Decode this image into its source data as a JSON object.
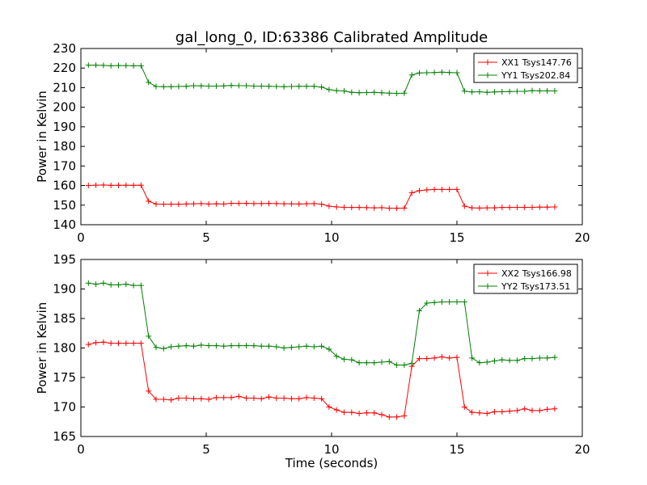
{
  "chart_data": [
    {
      "type": "line",
      "title": "gal_long_0, ID:63386 Calibrated Amplitude",
      "xlabel": "",
      "ylabel": "Power in Kelvin",
      "xlim": [
        0,
        20
      ],
      "ylim": [
        140,
        230
      ],
      "xticks": [
        "0",
        "5",
        "10",
        "15",
        "20"
      ],
      "yticks": [
        "140",
        "150",
        "160",
        "170",
        "180",
        "190",
        "200",
        "210",
        "220",
        "230"
      ],
      "legend_position": "top-right",
      "marker": "plus",
      "x": [
        0.3,
        0.6,
        0.9,
        1.2,
        1.5,
        1.8,
        2.1,
        2.4,
        2.7,
        3.0,
        3.3,
        3.6,
        3.9,
        4.2,
        4.5,
        4.8,
        5.1,
        5.4,
        5.7,
        6.0,
        6.3,
        6.6,
        6.9,
        7.2,
        7.5,
        7.8,
        8.1,
        8.4,
        8.7,
        9.0,
        9.3,
        9.6,
        9.9,
        10.2,
        10.5,
        10.8,
        11.1,
        11.4,
        11.7,
        12.0,
        12.3,
        12.6,
        12.9,
        13.2,
        13.5,
        13.8,
        14.1,
        14.4,
        14.7,
        15.0,
        15.3,
        15.6,
        15.9,
        16.2,
        16.5,
        16.8,
        17.1,
        17.4,
        17.7,
        18.0,
        18.3,
        18.6,
        18.9
      ],
      "series": [
        {
          "name": "XX1 Tsys147.76",
          "color": "#ff0000",
          "values": [
            160.0,
            160.2,
            160.3,
            160.1,
            160.1,
            160.2,
            160.1,
            160.2,
            152.0,
            150.6,
            150.5,
            150.5,
            150.5,
            150.6,
            150.7,
            150.8,
            150.6,
            150.7,
            150.6,
            150.9,
            150.9,
            150.9,
            150.8,
            150.8,
            150.9,
            150.8,
            150.7,
            150.7,
            150.6,
            150.7,
            150.8,
            150.5,
            149.5,
            149.1,
            148.9,
            148.8,
            148.8,
            148.7,
            148.6,
            148.7,
            148.4,
            148.4,
            148.5,
            156.3,
            157.4,
            157.8,
            158.0,
            158.0,
            158.0,
            158.0,
            149.5,
            148.6,
            148.5,
            148.6,
            148.6,
            148.8,
            148.8,
            148.9,
            148.9,
            148.9,
            149.0,
            149.0,
            149.1
          ]
        },
        {
          "name": "YY1 Tsys202.84",
          "color": "#008000",
          "values": [
            221.5,
            221.5,
            221.4,
            221.2,
            221.3,
            221.3,
            221.2,
            221.2,
            212.7,
            210.6,
            210.5,
            210.5,
            210.6,
            210.7,
            211.0,
            210.9,
            210.8,
            210.8,
            210.9,
            211.1,
            211.0,
            211.0,
            210.8,
            210.8,
            210.7,
            210.6,
            210.5,
            210.6,
            210.7,
            210.7,
            210.7,
            210.3,
            209.0,
            208.5,
            208.3,
            207.6,
            207.4,
            207.5,
            207.6,
            207.4,
            207.2,
            207.1,
            207.2,
            216.5,
            217.5,
            217.6,
            217.7,
            217.9,
            217.7,
            217.6,
            208.2,
            207.8,
            207.9,
            207.6,
            207.8,
            207.9,
            208.0,
            208.1,
            208.1,
            208.5,
            208.4,
            208.4,
            208.3
          ]
        }
      ]
    },
    {
      "type": "line",
      "title": "",
      "xlabel": "Time (seconds)",
      "ylabel": "Power in Kelvin",
      "xlim": [
        0,
        20
      ],
      "ylim": [
        165,
        195
      ],
      "xticks": [
        "0",
        "5",
        "10",
        "15",
        "20"
      ],
      "yticks": [
        "165",
        "170",
        "175",
        "180",
        "185",
        "190",
        "195"
      ],
      "legend_position": "top-right",
      "marker": "plus",
      "x": [
        0.3,
        0.6,
        0.9,
        1.2,
        1.5,
        1.8,
        2.1,
        2.4,
        2.7,
        3.0,
        3.3,
        3.6,
        3.9,
        4.2,
        4.5,
        4.8,
        5.1,
        5.4,
        5.7,
        6.0,
        6.3,
        6.6,
        6.9,
        7.2,
        7.5,
        7.8,
        8.1,
        8.4,
        8.7,
        9.0,
        9.3,
        9.6,
        9.9,
        10.2,
        10.5,
        10.8,
        11.1,
        11.4,
        11.7,
        12.0,
        12.3,
        12.6,
        12.9,
        13.2,
        13.5,
        13.8,
        14.1,
        14.4,
        14.7,
        15.0,
        15.3,
        15.6,
        15.9,
        16.2,
        16.5,
        16.8,
        17.1,
        17.4,
        17.7,
        18.0,
        18.3,
        18.6,
        18.9
      ],
      "series": [
        {
          "name": "XX2 Tsys166.98",
          "color": "#ff0000",
          "values": [
            180.6,
            180.9,
            181.0,
            180.8,
            180.8,
            180.8,
            180.8,
            180.8,
            172.7,
            171.3,
            171.3,
            171.2,
            171.5,
            171.5,
            171.4,
            171.4,
            171.3,
            171.6,
            171.6,
            171.6,
            171.8,
            171.5,
            171.5,
            171.4,
            171.7,
            171.5,
            171.5,
            171.4,
            171.4,
            171.6,
            171.5,
            171.4,
            170.0,
            169.5,
            169.1,
            169.1,
            168.9,
            169.0,
            169.0,
            168.7,
            168.3,
            168.3,
            168.5,
            176.9,
            178.2,
            178.2,
            178.3,
            178.5,
            178.3,
            178.4,
            170.0,
            169.1,
            169.0,
            168.9,
            169.2,
            169.2,
            169.3,
            169.4,
            169.7,
            169.4,
            169.4,
            169.6,
            169.7
          ]
        },
        {
          "name": "YY2 Tsys173.51",
          "color": "#008000",
          "values": [
            191.0,
            190.8,
            191.0,
            190.7,
            190.7,
            190.8,
            190.6,
            190.6,
            182.0,
            180.1,
            179.9,
            180.2,
            180.3,
            180.4,
            180.3,
            180.5,
            180.4,
            180.4,
            180.3,
            180.4,
            180.4,
            180.4,
            180.4,
            180.3,
            180.3,
            180.2,
            180.0,
            180.1,
            180.2,
            180.3,
            180.2,
            180.3,
            179.8,
            178.6,
            178.1,
            178.0,
            177.5,
            177.5,
            177.5,
            177.6,
            177.7,
            177.1,
            177.1,
            177.4,
            186.3,
            187.6,
            187.7,
            187.8,
            187.8,
            187.8,
            187.8,
            178.3,
            177.5,
            177.6,
            177.8,
            178.0,
            177.9,
            177.9,
            178.2,
            178.2,
            178.3,
            178.3,
            178.4
          ]
        }
      ]
    }
  ]
}
